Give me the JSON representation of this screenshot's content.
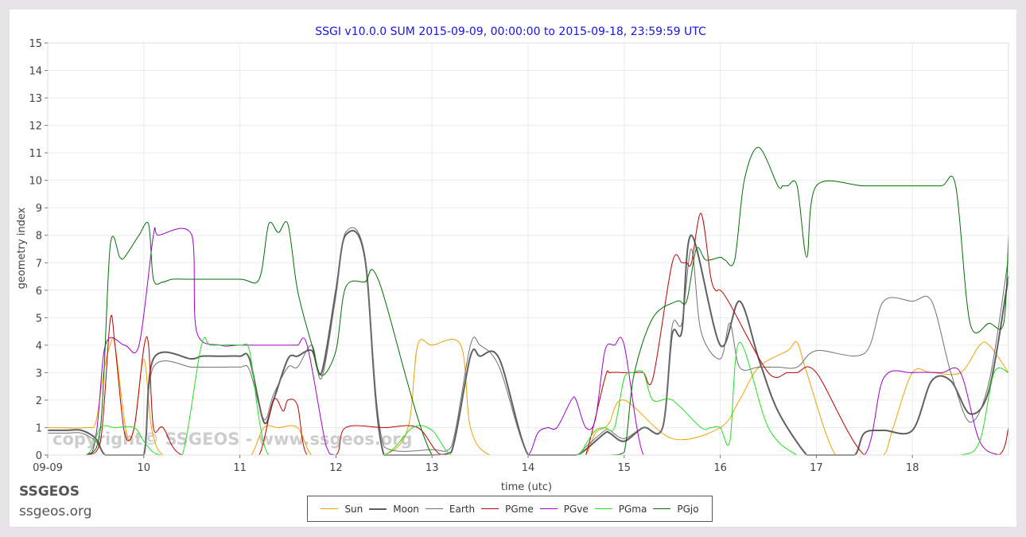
{
  "brand": {
    "name": "SSGEOS",
    "url": "ssgeos.org"
  },
  "watermark": "copyright© SSGEOS - www.ssgeos.org",
  "chart_data": {
    "type": "line",
    "title": "SSGI v10.0.0 SUM 2015-09-09, 00:00:00 to 2015-09-18, 23:59:59 UTC",
    "xlabel": "time (utc)",
    "ylabel": "geometry index",
    "x_unit": "day",
    "xlim": [
      "2015-09-09 00:00",
      "2015-09-19 00:00"
    ],
    "ylim": [
      0,
      15
    ],
    "yticks": [
      0,
      1,
      2,
      3,
      4,
      5,
      6,
      7,
      8,
      9,
      10,
      11,
      12,
      13,
      14,
      15
    ],
    "xticks": [
      {
        "x": "2015-09-09",
        "label": "09-09"
      },
      {
        "x": "2015-09-10",
        "label": "10"
      },
      {
        "x": "2015-09-11",
        "label": "11"
      },
      {
        "x": "2015-09-12",
        "label": "12"
      },
      {
        "x": "2015-09-13",
        "label": "13"
      },
      {
        "x": "2015-09-14",
        "label": "14"
      },
      {
        "x": "2015-09-15",
        "label": "15"
      },
      {
        "x": "2015-09-16",
        "label": "16"
      },
      {
        "x": "2015-09-17",
        "label": "17"
      },
      {
        "x": "2015-09-18",
        "label": "18"
      }
    ],
    "grid": true,
    "legend": "bottom",
    "series": [
      {
        "name": "Sun",
        "color": "#f0a000",
        "width": 1,
        "x": [
          0,
          0.4,
          0.5,
          0.58,
          0.65,
          0.7,
          0.82,
          0.9,
          1.0,
          1.08,
          1.2,
          1.5,
          2.0,
          2.12,
          2.25,
          2.4,
          2.6,
          2.75,
          3.0,
          3.5,
          3.75,
          3.85,
          4.0,
          4.3,
          4.4,
          4.6,
          5.0,
          5.5,
          5.6,
          5.7,
          5.8,
          5.85,
          6.0,
          6.5,
          7.0,
          7.2,
          7.4,
          7.7,
          7.8,
          7.9,
          8.2,
          8.5,
          8.7,
          8.8,
          9.0,
          9.2,
          9.5,
          9.7,
          9.8,
          10.0
        ],
        "y": [
          1,
          1,
          1.2,
          3,
          4,
          4,
          0.8,
          1,
          3.5,
          1,
          0,
          0,
          0,
          0,
          1,
          1,
          1,
          0,
          0,
          0,
          1,
          4,
          4,
          4,
          1,
          0,
          0,
          0,
          0,
          0.8,
          1,
          1.2,
          2,
          0.6,
          1,
          2,
          3.2,
          3.8,
          4.1,
          3,
          0,
          0,
          0,
          1,
          3,
          3,
          3,
          4,
          4,
          3
        ]
      },
      {
        "name": "Moon",
        "color": "#606060",
        "width": 2,
        "x": [
          0,
          0.2,
          0.35,
          0.5,
          0.6,
          0.8,
          1.0,
          1.1,
          1.5,
          1.6,
          1.8,
          2.0,
          2.1,
          2.25,
          2.35,
          2.5,
          2.6,
          2.75,
          2.85,
          3.0,
          3.1,
          3.3,
          3.5,
          4.0,
          4.2,
          4.4,
          4.5,
          4.7,
          5.0,
          5.3,
          5.5,
          5.6,
          5.8,
          5.85,
          6.0,
          6.2,
          6.4,
          6.5,
          6.6,
          6.7,
          7.0,
          7.2,
          7.4,
          7.6,
          7.9,
          8.0,
          8.2,
          8.4,
          8.5,
          8.7,
          9.0,
          9.2,
          9.4,
          9.6,
          9.8,
          10.0
        ],
        "y": [
          0.9,
          0.9,
          0.9,
          0.6,
          0,
          0,
          0,
          3.5,
          3.5,
          3.6,
          3.6,
          3.6,
          3.5,
          1.2,
          2,
          3.5,
          3.6,
          3.8,
          3,
          6,
          8,
          7.2,
          0,
          0,
          0.1,
          3.6,
          3.6,
          3.5,
          0,
          0,
          0,
          0.2,
          0.8,
          0.8,
          0.5,
          1,
          1.0,
          4.4,
          4.5,
          8,
          4,
          5.6,
          3.5,
          1.6,
          0,
          0,
          0,
          0,
          0.8,
          0.9,
          0.9,
          2.7,
          2.7,
          1.5,
          2.4,
          6.5
        ]
      },
      {
        "name": "Earth",
        "color": "#707070",
        "width": 1,
        "x": [
          0,
          0.2,
          0.35,
          0.5,
          0.6,
          0.8,
          1.0,
          1.1,
          1.5,
          1.6,
          1.8,
          2.0,
          2.1,
          2.25,
          2.35,
          2.5,
          2.6,
          2.75,
          2.85,
          3.0,
          3.1,
          3.3,
          3.5,
          4.0,
          4.2,
          4.4,
          4.5,
          4.7,
          5.0,
          5.3,
          5.5,
          5.6,
          5.8,
          5.85,
          6.0,
          6.2,
          6.4,
          6.5,
          6.6,
          6.7,
          6.8,
          7.0,
          7.1,
          7.2,
          7.4,
          7.6,
          7.8,
          8.0,
          8.5,
          8.7,
          9.0,
          9.2,
          9.4,
          9.6,
          9.8,
          10.0
        ],
        "y": [
          0.8,
          0.8,
          0.8,
          0.5,
          0,
          0,
          0,
          3.2,
          3.2,
          3.2,
          3.2,
          3.2,
          3.1,
          1.3,
          2.2,
          3.2,
          3.2,
          4,
          2.8,
          5.8,
          8.1,
          7.3,
          0.3,
          0.2,
          0.3,
          4,
          4,
          3.2,
          0,
          0,
          0,
          0.3,
          0.9,
          0.9,
          0.6,
          1,
          1.0,
          4.7,
          4.8,
          7.5,
          4.5,
          3.5,
          4.8,
          3.2,
          3.2,
          3.2,
          3.2,
          3.8,
          3.7,
          5.6,
          5.6,
          5.6,
          3,
          1.2,
          2.7,
          7.2
        ]
      },
      {
        "name": "PGme",
        "color": "#c00000",
        "width": 1,
        "x": [
          0,
          0.4,
          0.55,
          0.65,
          0.7,
          0.8,
          0.9,
          1.0,
          1.05,
          1.1,
          1.2,
          1.4,
          2.0,
          2.2,
          2.35,
          2.45,
          2.5,
          2.6,
          2.7,
          3.0,
          3.1,
          3.5,
          3.85,
          4.1,
          4.5,
          5.0,
          5.5,
          5.6,
          5.8,
          5.85,
          6.0,
          6.1,
          6.2,
          6.3,
          6.5,
          6.6,
          6.65,
          6.7,
          6.8,
          6.9,
          6.95,
          7.0,
          7.1,
          7.5,
          7.7,
          7.8,
          8.0,
          8.5,
          9.0,
          9.5,
          9.9,
          10.0
        ],
        "y": [
          0,
          0,
          0.5,
          4.9,
          4,
          0.8,
          1,
          3.9,
          4,
          1,
          1,
          0,
          0,
          0,
          2,
          1.6,
          2,
          1.8,
          0,
          0,
          1,
          1,
          1,
          0,
          0,
          0,
          0,
          0,
          2.8,
          3,
          3,
          3,
          3,
          2.8,
          7,
          7,
          7,
          7,
          8.8,
          6.5,
          6,
          6,
          5.5,
          3,
          3,
          3,
          3,
          0,
          0,
          0,
          0,
          1
        ]
      },
      {
        "name": "PGve",
        "color": "#a000c8",
        "width": 1,
        "x": [
          0,
          0.45,
          0.6,
          0.8,
          0.95,
          1.1,
          1.15,
          1.5,
          1.55,
          1.8,
          2.0,
          2.5,
          2.6,
          2.7,
          2.9,
          3.0,
          3.5,
          4.0,
          4.5,
          4.6,
          4.8,
          5.0,
          5.1,
          5.2,
          5.3,
          5.45,
          5.5,
          5.6,
          5.7,
          5.8,
          5.9,
          6.0,
          6.2,
          6.5,
          7.0,
          7.5,
          7.8,
          8.0,
          8.5,
          8.7,
          9.0,
          9.3,
          9.5,
          9.7,
          9.9,
          10.0
        ],
        "y": [
          0,
          0,
          4,
          4,
          4,
          8,
          8,
          8,
          4.5,
          4,
          4,
          4,
          4,
          4,
          0.3,
          0,
          0,
          0,
          0,
          0,
          0,
          0,
          0.8,
          1,
          1,
          2,
          2,
          1,
          1.3,
          3.8,
          4,
          4,
          0,
          0,
          0,
          0,
          0,
          0,
          0,
          2.8,
          3,
          3,
          3,
          0.5,
          0,
          0
        ]
      },
      {
        "name": "PGma",
        "color": "#20e020",
        "width": 1,
        "x": [
          0,
          0.4,
          0.55,
          0.7,
          0.9,
          1.0,
          1.1,
          1.2,
          1.4,
          1.6,
          1.7,
          2.0,
          2.1,
          2.2,
          2.3,
          2.5,
          2.8,
          3.0,
          3.5,
          3.8,
          4.0,
          4.2,
          4.5,
          5.0,
          5.5,
          5.6,
          5.7,
          5.8,
          5.9,
          6.0,
          6.1,
          6.2,
          6.3,
          6.5,
          6.8,
          6.9,
          7.0,
          7.1,
          7.2,
          7.5,
          7.8,
          8.0,
          8.5,
          9.0,
          9.5,
          9.7,
          9.85,
          10.0
        ],
        "y": [
          0,
          0,
          1,
          1,
          1,
          0.5,
          0.1,
          0,
          0,
          4,
          4,
          4,
          3.8,
          1.3,
          0,
          0,
          0,
          0,
          0,
          1,
          0.9,
          0,
          0,
          0,
          0,
          0.4,
          0.9,
          1,
          1,
          2.8,
          3,
          3,
          2,
          2,
          1,
          1,
          1,
          0.5,
          4.1,
          1,
          0,
          0,
          0,
          0,
          0,
          0.5,
          3,
          3
        ]
      },
      {
        "name": "PGjo",
        "color": "#007000",
        "width": 1,
        "x": [
          0,
          0.4,
          0.55,
          0.65,
          0.75,
          0.8,
          0.95,
          1.05,
          1.1,
          1.2,
          1.3,
          1.5,
          2.0,
          2.2,
          2.3,
          2.4,
          2.5,
          2.6,
          2.75,
          2.85,
          3.0,
          3.1,
          3.3,
          3.45,
          4.0,
          4.5,
          5.0,
          5.5,
          5.85,
          6.0,
          6.1,
          6.3,
          6.55,
          6.65,
          6.75,
          6.85,
          7.0,
          7.05,
          7.15,
          7.25,
          7.4,
          7.6,
          7.65,
          7.7,
          7.8,
          7.9,
          8.0,
          8.5,
          9.0,
          9.3,
          9.45,
          9.6,
          9.8,
          9.95,
          10.0
        ],
        "y": [
          0,
          0,
          1,
          7.6,
          7.2,
          7.2,
          8,
          8.4,
          6.4,
          6.3,
          6.4,
          6.4,
          6.4,
          6.4,
          8.4,
          8.1,
          8.4,
          6,
          4,
          2.9,
          3.8,
          6.1,
          6.3,
          6.3,
          0,
          0,
          0,
          0,
          0,
          0.1,
          2.9,
          5,
          5.6,
          5.6,
          7.5,
          7.1,
          7.2,
          7.1,
          7.1,
          10,
          11.2,
          9.8,
          9.8,
          9.8,
          9.8,
          7.2,
          9.8,
          9.8,
          9.8,
          9.8,
          9.8,
          4.8,
          4.8,
          4.8,
          8
        ]
      }
    ]
  }
}
